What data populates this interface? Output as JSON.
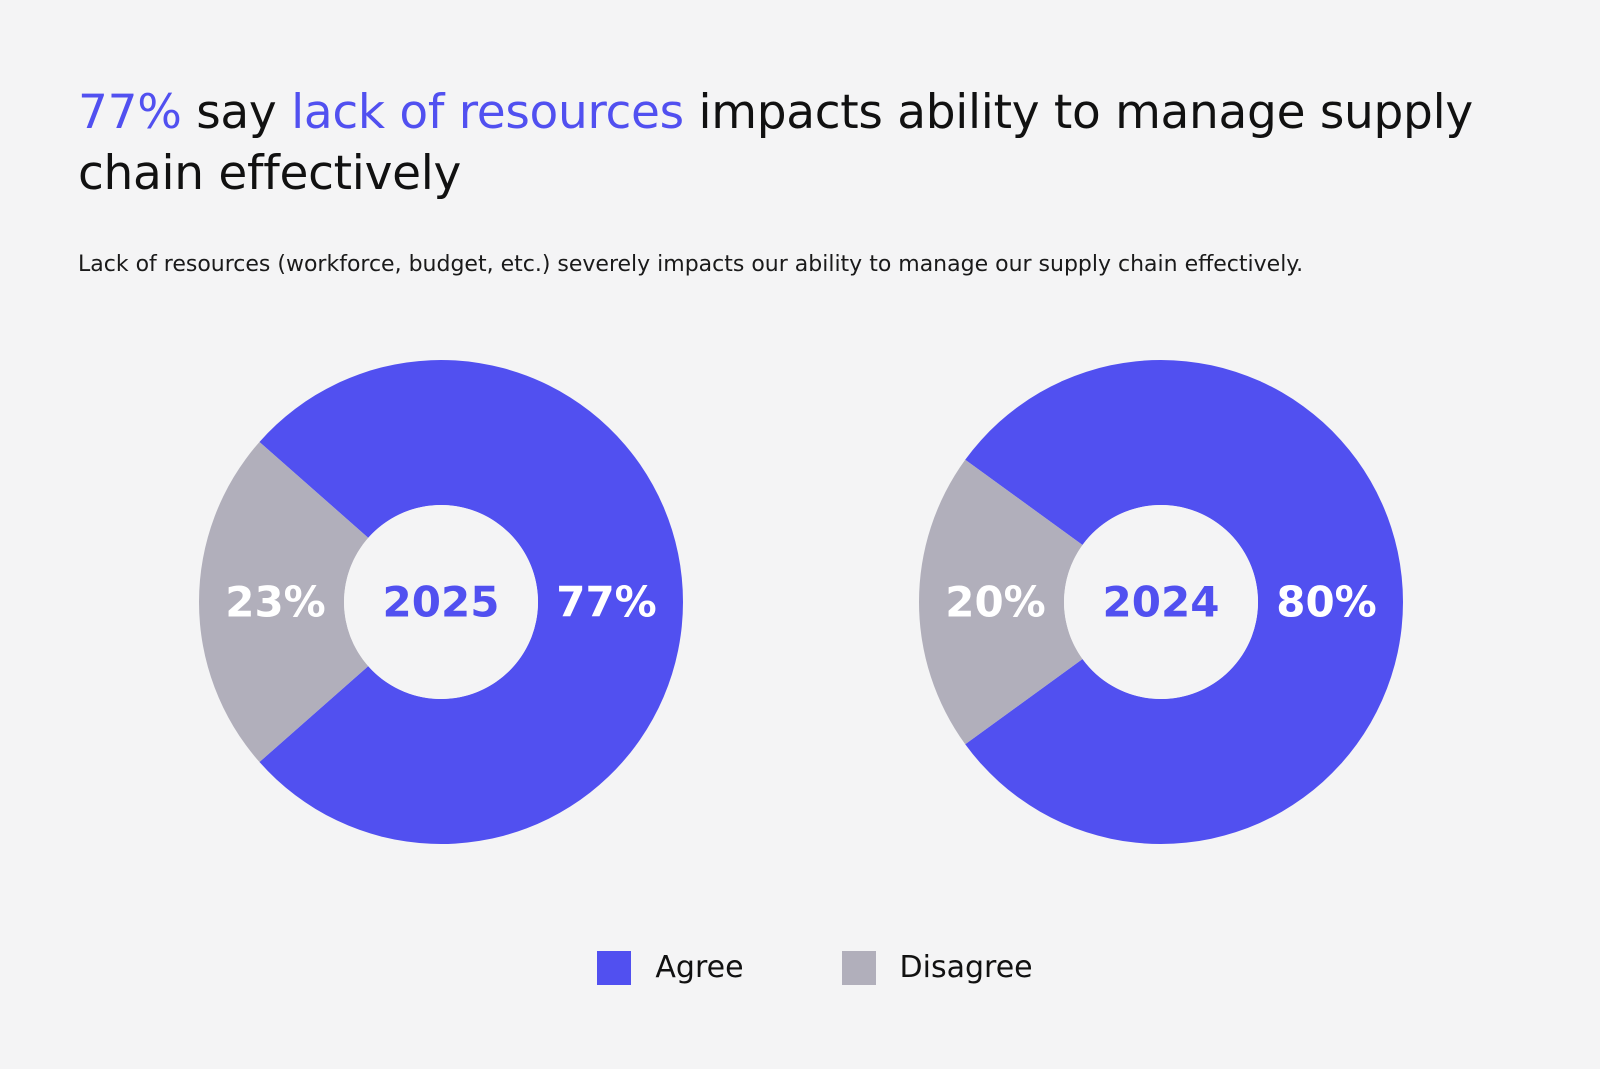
{
  "headline": {
    "part1": "77%",
    "part2": " say ",
    "part3": "lack of resources",
    "part4": " impacts ability to manage supply chain effectively"
  },
  "subtitle": "Lack of resources (workforce, budget, etc.) severely impacts our ability to manage our supply chain effectively.",
  "colors": {
    "agree": "#5150f0",
    "disagree": "#b1afbb",
    "background": "#f4f4f5",
    "accent_text": "#5150f0"
  },
  "legend": [
    {
      "label": "Agree",
      "color": "#5150f0"
    },
    {
      "label": "Disagree",
      "color": "#b1afbb"
    }
  ],
  "chart_data": [
    {
      "type": "pie",
      "title": "2025",
      "categories": [
        "Agree",
        "Disagree"
      ],
      "values": [
        77,
        23
      ],
      "labels": [
        "77%",
        "23%"
      ]
    },
    {
      "type": "pie",
      "title": "2024",
      "categories": [
        "Agree",
        "Disagree"
      ],
      "values": [
        80,
        20
      ],
      "labels": [
        "80%",
        "20%"
      ]
    }
  ]
}
